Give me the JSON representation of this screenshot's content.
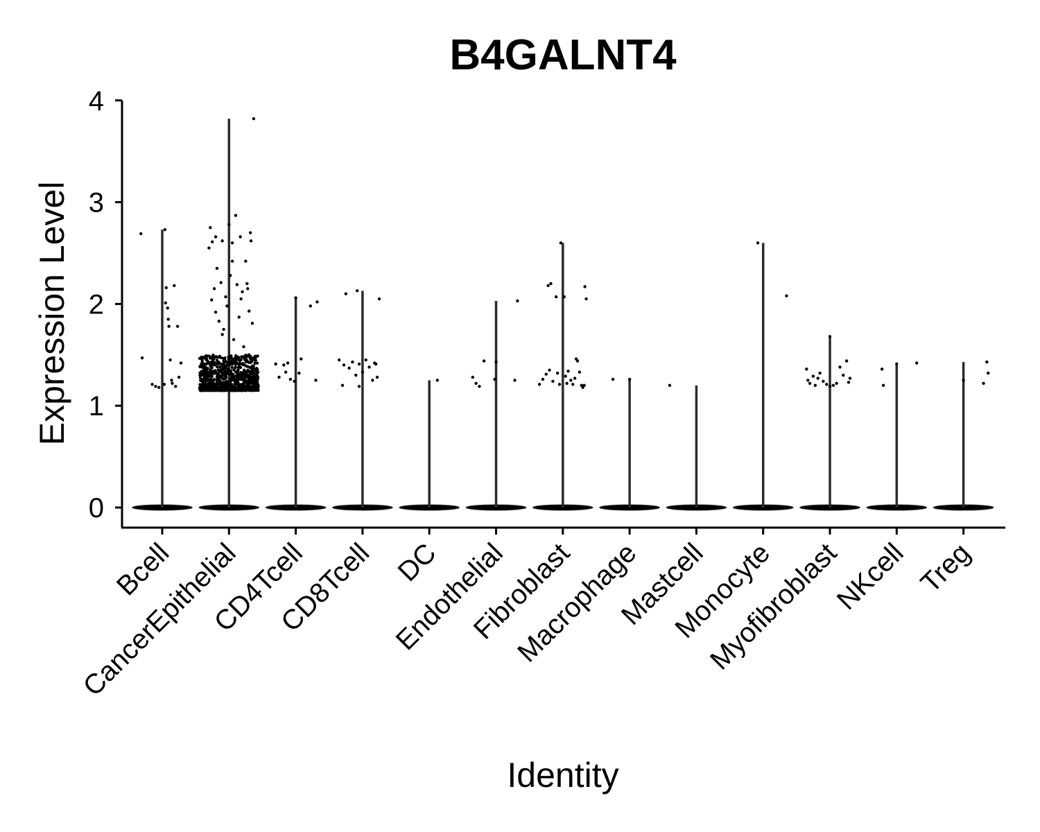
{
  "chart_data": {
    "type": "violin",
    "title": "B4GALNT4",
    "xlabel": "Identity",
    "ylabel": "Expression Level",
    "ylim": [
      -0.2,
      4.05
    ],
    "yticks": [
      0,
      1,
      2,
      3,
      4
    ],
    "categories": [
      "Bcell",
      "CancerEpithelial",
      "CD4Tcell",
      "CD8Tcell",
      "DC",
      "Endothelial",
      "Fibroblast",
      "Macrophage",
      "Mastcell",
      "Monocyte",
      "Myofibroblast",
      "NKcell",
      "Treg"
    ],
    "max_values": [
      2.73,
      3.82,
      2.06,
      2.13,
      1.25,
      2.03,
      2.6,
      1.26,
      1.2,
      2.6,
      1.68,
      1.41,
      1.43
    ],
    "points": [
      [
        [
          -0.32,
          2.69
        ],
        [
          -0.3,
          1.47
        ],
        [
          -0.15,
          1.21
        ],
        [
          -0.1,
          1.19
        ],
        [
          -0.05,
          1.18
        ],
        [
          0.03,
          1.21
        ],
        [
          0.05,
          2.01
        ],
        [
          0.06,
          2.16
        ],
        [
          0.08,
          1.96
        ],
        [
          0.09,
          1.85
        ],
        [
          0.1,
          1.78
        ],
        [
          0.12,
          1.45
        ],
        [
          0.15,
          1.22
        ],
        [
          0.18,
          2.18
        ],
        [
          0.2,
          1.19
        ],
        [
          0.23,
          1.78
        ],
        [
          0.25,
          1.28
        ],
        [
          0.28,
          1.42
        ],
        [
          0.04,
          2.73
        ],
        [
          0.14,
          1.25
        ]
      ],
      [
        [
          -0.3,
          2.55
        ],
        [
          -0.28,
          2.75
        ],
        [
          -0.26,
          2.04
        ],
        [
          -0.25,
          2.61
        ],
        [
          -0.22,
          2.15
        ],
        [
          -0.2,
          1.92
        ],
        [
          -0.18,
          2.35
        ],
        [
          -0.15,
          1.83
        ],
        [
          -0.12,
          2.21
        ],
        [
          -0.1,
          2.62
        ],
        [
          -0.08,
          1.75
        ],
        [
          -0.05,
          2.07
        ],
        [
          -0.03,
          1.98
        ],
        [
          0.0,
          2.78
        ],
        [
          0.02,
          2.28
        ],
        [
          0.05,
          2.6
        ],
        [
          0.07,
          1.65
        ],
        [
          0.1,
          2.87
        ],
        [
          0.12,
          2.19
        ],
        [
          0.15,
          1.87
        ],
        [
          0.17,
          2.66
        ],
        [
          0.2,
          2.12
        ],
        [
          0.22,
          1.58
        ],
        [
          0.25,
          2.42
        ],
        [
          0.27,
          2.2
        ],
        [
          0.3,
          1.93
        ],
        [
          0.32,
          2.7
        ],
        [
          0.35,
          1.81
        ],
        [
          0.37,
          3.82
        ],
        [
          -0.2,
          2.66
        ],
        [
          0.05,
          2.42
        ],
        [
          0.18,
          2.05
        ],
        [
          -0.1,
          1.7
        ],
        [
          0.28,
          2.15
        ],
        [
          0.33,
          2.62
        ],
        [
          -0.24,
          1.48
        ],
        [
          0.1,
          1.44
        ],
        [
          0.3,
          1.5
        ]
      ],
      [
        [
          -0.3,
          1.41
        ],
        [
          -0.25,
          1.28
        ],
        [
          -0.18,
          1.4
        ],
        [
          -0.12,
          1.42
        ],
        [
          -0.08,
          1.26
        ],
        [
          -0.02,
          1.24
        ],
        [
          0.05,
          1.32
        ],
        [
          0.08,
          1.46
        ],
        [
          0.22,
          1.98
        ],
        [
          0.3,
          1.25
        ],
        [
          0.32,
          2.02
        ],
        [
          -0.15,
          1.33
        ],
        [
          0.0,
          2.06
        ]
      ],
      [
        [
          -0.35,
          1.45
        ],
        [
          -0.28,
          1.4
        ],
        [
          -0.25,
          2.1
        ],
        [
          -0.2,
          1.37
        ],
        [
          -0.15,
          1.43
        ],
        [
          -0.1,
          1.3
        ],
        [
          -0.08,
          2.13
        ],
        [
          -0.05,
          1.41
        ],
        [
          0.0,
          1.33
        ],
        [
          0.05,
          1.45
        ],
        [
          0.1,
          1.38
        ],
        [
          0.15,
          1.25
        ],
        [
          0.2,
          1.41
        ],
        [
          0.25,
          2.05
        ],
        [
          0.22,
          1.28
        ],
        [
          0.18,
          1.42
        ],
        [
          -0.3,
          1.2
        ],
        [
          -0.05,
          1.19
        ]
      ],
      [
        [
          0.12,
          1.25
        ]
      ],
      [
        [
          -0.35,
          1.28
        ],
        [
          -0.3,
          1.22
        ],
        [
          -0.25,
          1.19
        ],
        [
          -0.18,
          1.44
        ],
        [
          -0.02,
          1.26
        ],
        [
          0.0,
          1.43
        ],
        [
          0.28,
          1.25
        ],
        [
          0.32,
          2.03
        ]
      ],
      [
        [
          -0.35,
          1.21
        ],
        [
          -0.3,
          1.26
        ],
        [
          -0.25,
          1.31
        ],
        [
          -0.22,
          2.18
        ],
        [
          -0.2,
          1.35
        ],
        [
          -0.18,
          2.2
        ],
        [
          -0.15,
          1.24
        ],
        [
          -0.1,
          2.07
        ],
        [
          -0.08,
          1.32
        ],
        [
          -0.05,
          1.21
        ],
        [
          -0.03,
          2.6
        ],
        [
          0.02,
          2.07
        ],
        [
          0.04,
          1.29
        ],
        [
          0.06,
          1.22
        ],
        [
          0.08,
          1.34
        ],
        [
          0.12,
          1.25
        ],
        [
          0.15,
          1.21
        ],
        [
          0.18,
          1.27
        ],
        [
          0.2,
          1.46
        ],
        [
          0.22,
          1.44
        ],
        [
          0.25,
          1.33
        ],
        [
          0.28,
          1.2
        ],
        [
          0.3,
          1.18
        ],
        [
          0.33,
          2.17
        ],
        [
          0.35,
          2.05
        ],
        [
          0.32,
          1.2
        ]
      ],
      [
        [
          -0.25,
          1.26
        ],
        [
          0.0,
          1.26
        ]
      ],
      [
        [
          -0.4,
          1.2
        ]
      ],
      [
        [
          -0.08,
          2.6
        ],
        [
          0.35,
          2.08
        ]
      ],
      [
        [
          -0.35,
          1.36
        ],
        [
          -0.33,
          1.25
        ],
        [
          -0.3,
          1.22
        ],
        [
          -0.25,
          1.29
        ],
        [
          -0.22,
          1.2
        ],
        [
          -0.18,
          1.27
        ],
        [
          -0.15,
          1.32
        ],
        [
          -0.1,
          1.24
        ],
        [
          -0.05,
          1.21
        ],
        [
          0.0,
          1.19
        ],
        [
          0.05,
          1.2
        ],
        [
          0.1,
          1.22
        ],
        [
          0.15,
          1.38
        ],
        [
          0.2,
          1.3
        ],
        [
          0.25,
          1.44
        ],
        [
          0.28,
          1.23
        ],
        [
          0.3,
          1.27
        ],
        [
          0.0,
          1.68
        ]
      ],
      [
        [
          -0.22,
          1.36
        ],
        [
          -0.2,
          1.2
        ],
        [
          0.0,
          1.41
        ],
        [
          0.3,
          1.42
        ]
      ],
      [
        [
          0.0,
          1.25
        ],
        [
          0.3,
          1.22
        ],
        [
          0.35,
          1.43
        ],
        [
          0.37,
          1.32
        ]
      ]
    ],
    "cluster": {
      "category": "CancerEpithelial",
      "y_min": 1.15,
      "y_max": 1.5,
      "count": 900
    },
    "zero_band_width": 0.45,
    "grid": false,
    "legend": "none"
  }
}
